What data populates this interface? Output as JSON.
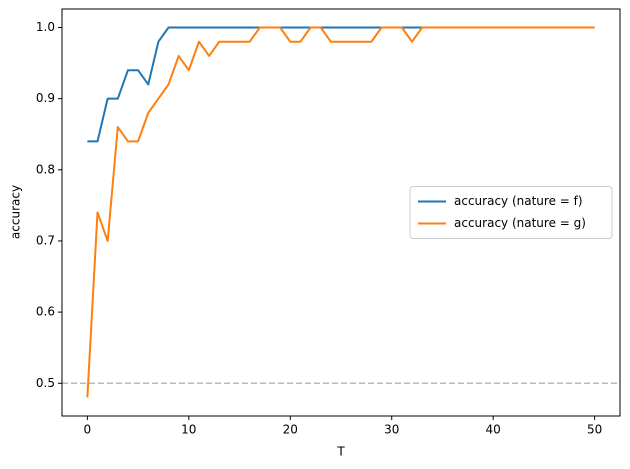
{
  "chart_data": {
    "type": "line",
    "x_label": "T",
    "y_label": "accuracy",
    "x": [
      0,
      1,
      2,
      3,
      4,
      5,
      6,
      7,
      8,
      9,
      10,
      11,
      12,
      13,
      14,
      15,
      16,
      17,
      18,
      19,
      20,
      21,
      22,
      23,
      24,
      25,
      26,
      27,
      28,
      29,
      30,
      31,
      32,
      33,
      34,
      35,
      36,
      37,
      38,
      39,
      40,
      41,
      42,
      43,
      44,
      45,
      46,
      47,
      48,
      49,
      50
    ],
    "series": [
      {
        "name": "accuracy (nature = f)",
        "color": "#1f77b4",
        "values": [
          0.84,
          0.84,
          0.9,
          0.9,
          0.94,
          0.94,
          0.92,
          0.98,
          1.0,
          1.0,
          1.0,
          1.0,
          1.0,
          1.0,
          1.0,
          1.0,
          1.0,
          1.0,
          1.0,
          1.0,
          1.0,
          1.0,
          1.0,
          1.0,
          1.0,
          1.0,
          1.0,
          1.0,
          1.0,
          1.0,
          1.0,
          1.0,
          1.0,
          1.0,
          1.0,
          1.0,
          1.0,
          1.0,
          1.0,
          1.0,
          1.0,
          1.0,
          1.0,
          1.0,
          1.0,
          1.0,
          1.0,
          1.0,
          1.0,
          1.0,
          1.0
        ]
      },
      {
        "name": "accuracy (nature = g)",
        "color": "#ff7f0e",
        "values": [
          0.48,
          0.74,
          0.7,
          0.86,
          0.84,
          0.84,
          0.88,
          0.9,
          0.92,
          0.96,
          0.94,
          0.98,
          0.96,
          0.98,
          0.98,
          0.98,
          0.98,
          1.0,
          1.0,
          1.0,
          0.98,
          0.98,
          1.0,
          1.0,
          0.98,
          0.98,
          0.98,
          0.98,
          0.98,
          1.0,
          1.0,
          1.0,
          0.98,
          1.0,
          1.0,
          1.0,
          1.0,
          1.0,
          1.0,
          1.0,
          1.0,
          1.0,
          1.0,
          1.0,
          1.0,
          1.0,
          1.0,
          1.0,
          1.0,
          1.0,
          1.0
        ]
      }
    ],
    "hline": 0.5,
    "hline_color": "#bbbbbb",
    "xlim": [
      -2.5,
      52.5
    ],
    "xticks": [
      0,
      10,
      20,
      30,
      40,
      50
    ],
    "ylim": [
      0.454,
      1.026
    ],
    "yticks": [
      0.5,
      0.6,
      0.7,
      0.8,
      0.9,
      {
        "value": 1,
        "label": "1.0"
      }
    ],
    "legend": "center right"
  }
}
